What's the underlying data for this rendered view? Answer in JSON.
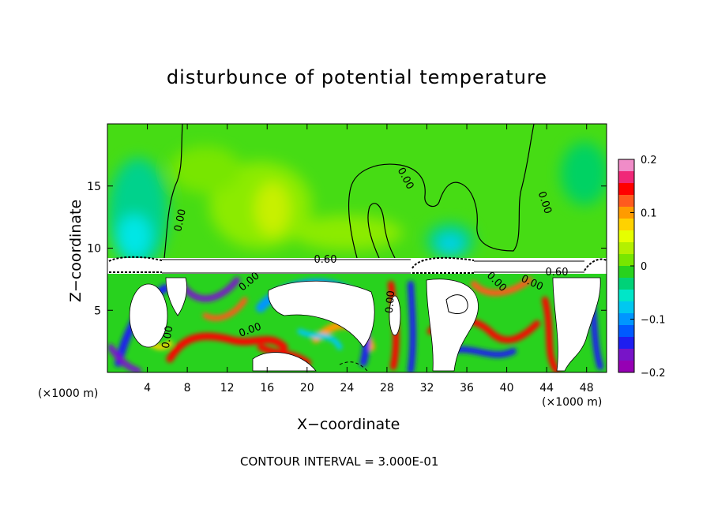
{
  "chart_data": {
    "type": "heatmap",
    "title": "disturbunce of potential temperature",
    "xlabel": "X−coordinate",
    "ylabel": "Z−coordinate",
    "x_unit": "(×1000 m)",
    "y_unit": "(×1000 m)",
    "xlim": [
      0,
      50
    ],
    "ylim": [
      0,
      20
    ],
    "x_ticks": [
      4,
      8,
      12,
      16,
      20,
      24,
      28,
      32,
      36,
      40,
      44,
      48
    ],
    "y_ticks": [
      5,
      10,
      15
    ],
    "colorbar": {
      "min": -0.2,
      "max": 0.2,
      "tick_values": [
        0.2,
        0.1,
        0,
        -0.1,
        -0.2
      ],
      "tick_labels": [
        "0.2",
        "0.1",
        "0",
        "−0.1",
        "−0.2"
      ],
      "colors": [
        "#f08cc8",
        "#f02878",
        "#ff0000",
        "#ff5a1e",
        "#ff9b00",
        "#ffd200",
        "#e6ff00",
        "#b4f000",
        "#78e600",
        "#28d21e",
        "#00d278",
        "#00e6c8",
        "#00c8f0",
        "#0096ff",
        "#005aff",
        "#1e1ef0",
        "#7814c8",
        "#9600b4"
      ]
    },
    "contour_labels": [
      "0.00",
      "0.00",
      "0.00",
      "0.00",
      "0.00",
      "0.00",
      "0.00",
      "0.00",
      "0.00",
      "0.60",
      "0.60"
    ],
    "contour_interval": "CONTOUR INTERVAL = 3.000E-01"
  },
  "x_unit_label": "(×1000 m)",
  "footnote": "CONTOUR INTERVAL = 3.000E-01"
}
